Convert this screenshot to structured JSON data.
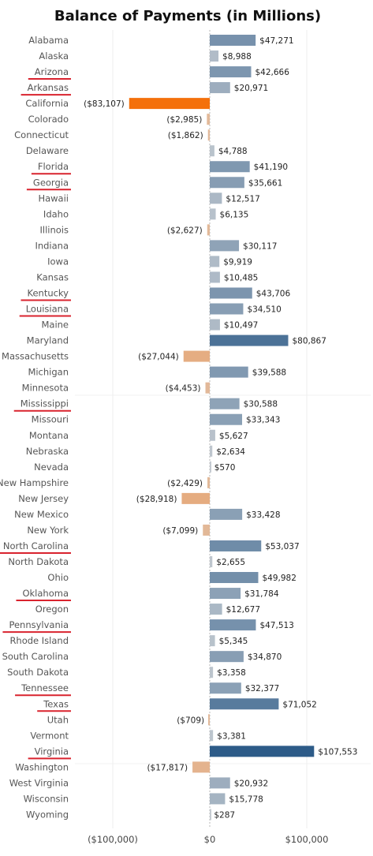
{
  "chart_data": {
    "type": "bar",
    "orientation": "horizontal",
    "title": "Balance of Payments (in Millions)",
    "xlabel": "",
    "ylabel": "",
    "xlim": [
      -140000,
      160000
    ],
    "x_ticks": [
      {
        "value": -100000,
        "label": "($100,000)"
      },
      {
        "value": 0,
        "label": "$0"
      },
      {
        "value": 100000,
        "label": "$100,000"
      }
    ],
    "gridlines": true,
    "colors": {
      "negative_max": "#f4700b",
      "negative_light": "#e2b99a",
      "positive_max": "#2d5b88",
      "positive_light": "#c6ccd2",
      "neutral": "#d4d4d4",
      "underline": "#d9232e",
      "grid": "#ececec",
      "zero_line": "#888888"
    },
    "categories": [
      "Alabama",
      "Alaska",
      "Arizona",
      "Arkansas",
      "California",
      "Colorado",
      "Connecticut",
      "Delaware",
      "Florida",
      "Georgia",
      "Hawaii",
      "Idaho",
      "Illinois",
      "Indiana",
      "Iowa",
      "Kansas",
      "Kentucky",
      "Louisiana",
      "Maine",
      "Maryland",
      "Massachusetts",
      "Michigan",
      "Minnesota",
      "Mississippi",
      "Missouri",
      "Montana",
      "Nebraska",
      "Nevada",
      "New Hampshire",
      "New Jersey",
      "New Mexico",
      "New York",
      "North Carolina",
      "North Dakota",
      "Ohio",
      "Oklahoma",
      "Oregon",
      "Pennsylvania",
      "Rhode Island",
      "South Carolina",
      "South Dakota",
      "Tennessee",
      "Texas",
      "Utah",
      "Vermont",
      "Virginia",
      "Washington",
      "West Virginia",
      "Wisconsin",
      "Wyoming"
    ],
    "values": [
      47271,
      8988,
      42666,
      20971,
      -83107,
      -2985,
      -1862,
      4788,
      41190,
      35661,
      12517,
      6135,
      -2627,
      30117,
      9919,
      10485,
      43706,
      34510,
      10497,
      80867,
      -27044,
      39588,
      -4453,
      30588,
      33343,
      5627,
      2634,
      570,
      -2429,
      -28918,
      33428,
      -7099,
      53037,
      2655,
      49982,
      31784,
      12677,
      47513,
      5345,
      34870,
      3358,
      32377,
      71052,
      -709,
      3381,
      107553,
      -17817,
      20932,
      15778,
      287
    ],
    "value_labels": [
      "$47,271",
      "$8,988",
      "$42,666",
      "$20,971",
      "($83,107)",
      "($2,985)",
      "($1,862)",
      "$4,788",
      "$41,190",
      "$35,661",
      "$12,517",
      "$6,135",
      "($2,627)",
      "$30,117",
      "$9,919",
      "$10,485",
      "$43,706",
      "$34,510",
      "$10,497",
      "$80,867",
      "($27,044)",
      "$39,588",
      "($4,453)",
      "$30,588",
      "$33,343",
      "$5,627",
      "$2,634",
      "$570",
      "($2,429)",
      "($28,918)",
      "$33,428",
      "($7,099)",
      "$53,037",
      "$2,655",
      "$49,982",
      "$31,784",
      "$12,677",
      "$47,513",
      "$5,345",
      "$34,870",
      "$3,358",
      "$32,377",
      "$71,052",
      "($709)",
      "$3,381",
      "$107,553",
      "($17,817)",
      "$20,932",
      "$15,778",
      "$287"
    ],
    "underlined_categories": [
      "Arizona",
      "Arkansas",
      "Florida",
      "Georgia",
      "Kentucky",
      "Louisiana",
      "Mississippi",
      "North Carolina",
      "Oklahoma",
      "Pennsylvania",
      "Tennessee",
      "Texas",
      "Virginia"
    ]
  }
}
